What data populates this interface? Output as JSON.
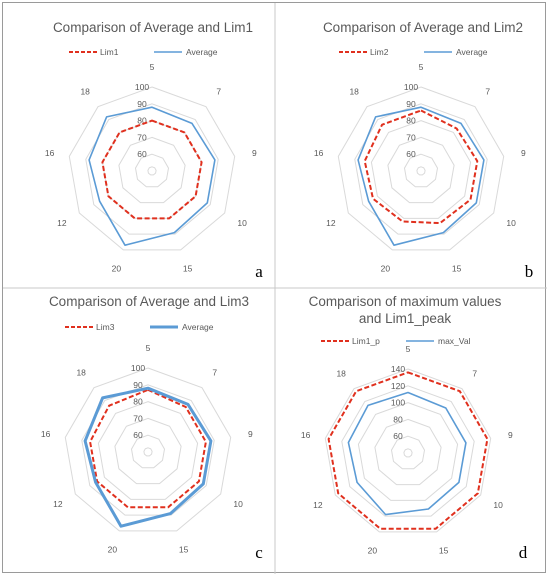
{
  "chart_data": [
    {
      "type": "radar",
      "panel_label": "a",
      "title": [
        "Comparison of Average and Lim1"
      ],
      "categories": [
        "5",
        "7",
        "9",
        "10",
        "15",
        "20",
        "12",
        "16",
        "18"
      ],
      "rlim": [
        50,
        100
      ],
      "ticks": [
        60,
        70,
        80,
        90,
        100
      ],
      "series": [
        {
          "name": "Lim1",
          "values": [
            80,
            80,
            80,
            80,
            80,
            80,
            80,
            80,
            80
          ],
          "color": "#e0301e",
          "style": "dashed"
        },
        {
          "name": "Average",
          "values": [
            88,
            87,
            88,
            88,
            89,
            97,
            86,
            88,
            92
          ],
          "color": "#5b9bd5",
          "style": "solid"
        }
      ]
    },
    {
      "type": "radar",
      "panel_label": "b",
      "title": [
        "Comparison of Average and Lim2"
      ],
      "categories": [
        "5",
        "7",
        "9",
        "10",
        "15",
        "20",
        "12",
        "16",
        "18"
      ],
      "rlim": [
        50,
        100
      ],
      "ticks": [
        60,
        70,
        80,
        90,
        100
      ],
      "series": [
        {
          "name": "Lim2",
          "values": [
            86,
            83,
            84,
            84,
            83,
            82,
            83,
            84,
            86
          ],
          "color": "#e0301e",
          "style": "dashed"
        },
        {
          "name": "Average",
          "values": [
            88,
            87,
            88,
            88,
            89,
            97,
            86,
            88,
            92
          ],
          "color": "#5b9bd5",
          "style": "solid"
        }
      ]
    },
    {
      "type": "radar",
      "panel_label": "c",
      "title": [
        "Comparison of Average and Lim3"
      ],
      "categories": [
        "5",
        "7",
        "9",
        "10",
        "15",
        "20",
        "12",
        "16",
        "18"
      ],
      "rlim": [
        50,
        100
      ],
      "ticks": [
        60,
        70,
        80,
        90,
        100
      ],
      "series": [
        {
          "name": "Lim3",
          "values": [
            87,
            85,
            85,
            85,
            85,
            85,
            85,
            85,
            86
          ],
          "color": "#e0301e",
          "style": "dashed"
        },
        {
          "name": "Average",
          "values": [
            88,
            87,
            88,
            88,
            89,
            97,
            86,
            88,
            92
          ],
          "color": "#5b9bd5",
          "style": "solid",
          "thick": true
        }
      ]
    },
    {
      "type": "radar",
      "panel_label": "d",
      "title": [
        "Comparison of maximum values",
        "and Lim1_peak"
      ],
      "categories": [
        "5",
        "7",
        "9",
        "10",
        "15",
        "20",
        "12",
        "16",
        "18"
      ],
      "rlim": [
        40,
        140
      ],
      "ticks": [
        60,
        80,
        100,
        120,
        140
      ],
      "series": [
        {
          "name": "Lim1_p",
          "values": [
            136,
            136,
            136,
            136,
            136,
            136,
            136,
            136,
            136
          ],
          "color": "#e0301e",
          "style": "dashed"
        },
        {
          "name": "max_Val",
          "values": [
            112,
            110,
            110,
            110,
            111,
            118,
            110,
            112,
            114
          ],
          "color": "#5b9bd5",
          "style": "solid"
        }
      ]
    }
  ]
}
